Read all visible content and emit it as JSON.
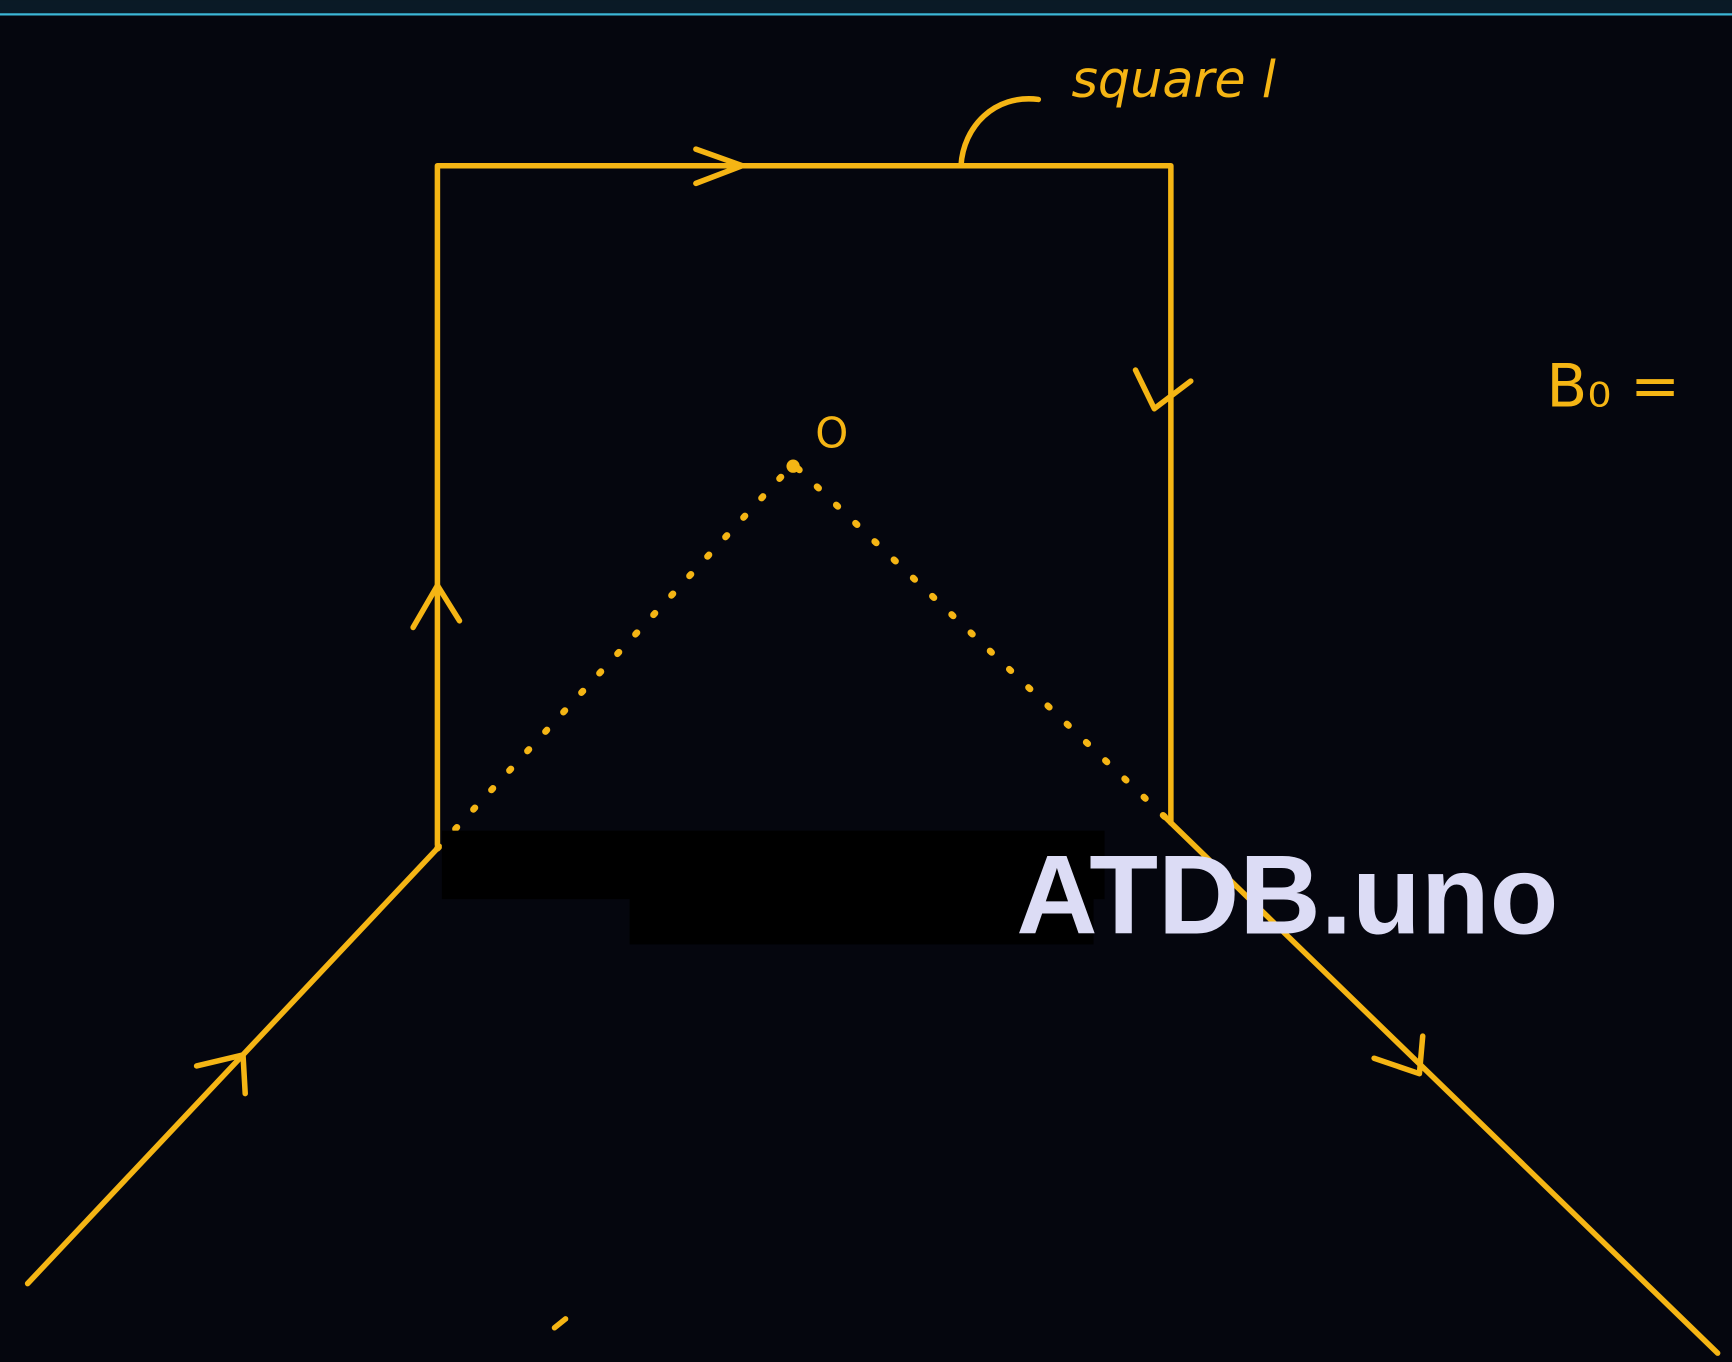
{
  "labels": {
    "side": "square l",
    "center": "O",
    "field": "B₀ ="
  },
  "watermark": "ATDB.uno"
}
